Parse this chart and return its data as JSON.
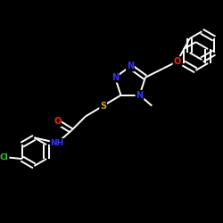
{
  "background_color": "#000000",
  "bond_color": "#ffffff",
  "atom_colors": {
    "N": "#3333ff",
    "O": "#ff2200",
    "S": "#ccaa00",
    "Cl": "#33cc33",
    "C": "#ffffff",
    "H": "#ffffff"
  },
  "bond_width": 1.4,
  "figsize": [
    2.5,
    2.5
  ],
  "dpi": 100
}
